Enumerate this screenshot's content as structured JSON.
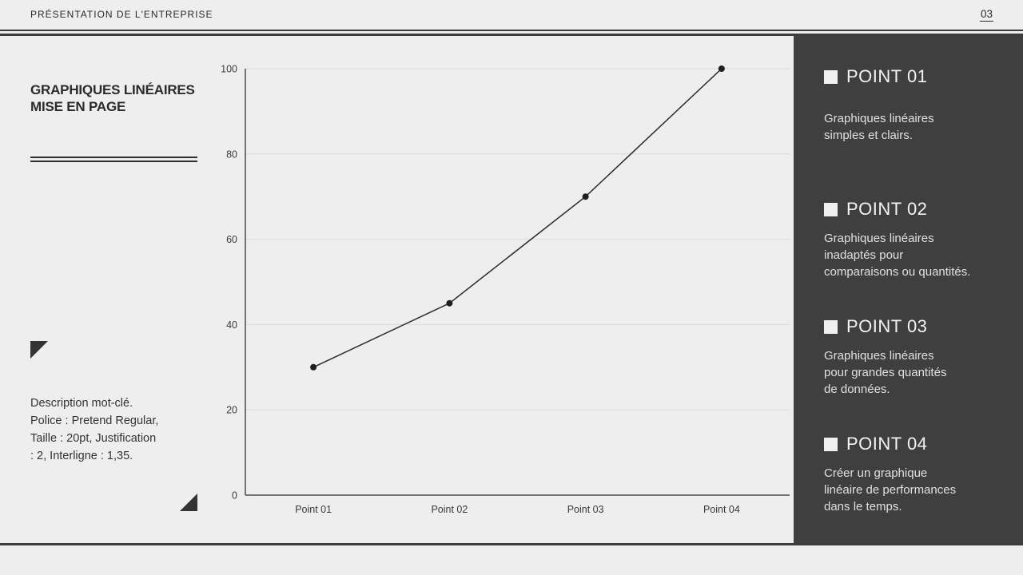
{
  "header": {
    "title": "PRÉSENTATION DE L'ENTREPRISE",
    "page_number": "03"
  },
  "left_panel": {
    "heading_lines": [
      "GRAPHIQUES LINÉAIRES",
      "MISE EN PAGE"
    ],
    "description_lines": [
      "Description mot-clé.",
      "Police : Pretend Regular,",
      "Taille : 20pt, Justification",
      ": 2, Interligne : 1,35."
    ]
  },
  "chart_data": {
    "type": "line",
    "categories": [
      "Point 01",
      "Point 02",
      "Point 03",
      "Point 04"
    ],
    "values": [
      30,
      45,
      70,
      100
    ],
    "title": "",
    "xlabel": "",
    "ylabel": "",
    "ylim": [
      0,
      100
    ],
    "ytick_step": 20,
    "grid": true,
    "legend": false,
    "line_color": "#2b2b2b",
    "marker_color": "#1f1f1f",
    "gridline_color": "#d9d9d9",
    "axis_color": "#4a4a4a",
    "tick_label_color": "#3a3a3a"
  },
  "sidebar": {
    "background": "#3f3f3f",
    "items": [
      {
        "label": "POINT 01",
        "description_lines": [
          "Graphiques linéaires",
          "simples et clairs."
        ]
      },
      {
        "label": "POINT 02",
        "description_lines": [
          "Graphiques linéaires",
          "inadaptés pour",
          "comparaisons ou quantités."
        ]
      },
      {
        "label": "POINT 03",
        "description_lines": [
          "Graphiques linéaires",
          "pour grandes quantités",
          "de données."
        ]
      },
      {
        "label": "POINT 04",
        "description_lines": [
          "Créer un graphique",
          "linéaire de performances",
          "dans le temps."
        ]
      }
    ]
  }
}
